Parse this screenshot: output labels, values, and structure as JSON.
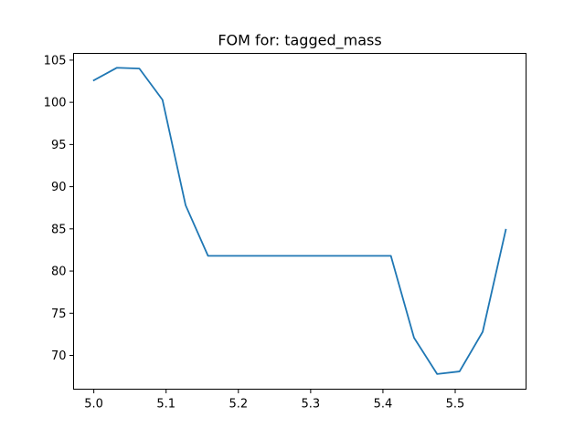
{
  "chart_data": {
    "type": "line",
    "title": "FOM for: tagged_mass",
    "xlabel": "",
    "ylabel": "",
    "xlim": [
      4.972,
      5.598
    ],
    "ylim": [
      66.0,
      105.8
    ],
    "xticks": [
      5.0,
      5.1,
      5.2,
      5.3,
      5.4,
      5.5
    ],
    "xtick_labels": [
      "5.0",
      "5.1",
      "5.2",
      "5.3",
      "5.4",
      "5.5"
    ],
    "yticks": [
      70,
      75,
      80,
      85,
      90,
      95,
      100,
      105
    ],
    "ytick_labels": [
      "70",
      "75",
      "80",
      "85",
      "90",
      "95",
      "100",
      "105"
    ],
    "grid": false,
    "series": [
      {
        "color": "#1f77b4",
        "x": [
          5.0,
          5.032,
          5.063,
          5.095,
          5.127,
          5.158,
          5.19,
          5.222,
          5.253,
          5.285,
          5.317,
          5.348,
          5.38,
          5.411,
          5.443,
          5.475,
          5.506,
          5.538,
          5.57
        ],
        "y": [
          102.6,
          104.1,
          104.0,
          100.3,
          87.8,
          81.8,
          81.8,
          81.8,
          81.8,
          81.8,
          81.8,
          81.8,
          81.8,
          81.8,
          72.1,
          67.8,
          68.1,
          72.8,
          84.9
        ]
      }
    ]
  }
}
